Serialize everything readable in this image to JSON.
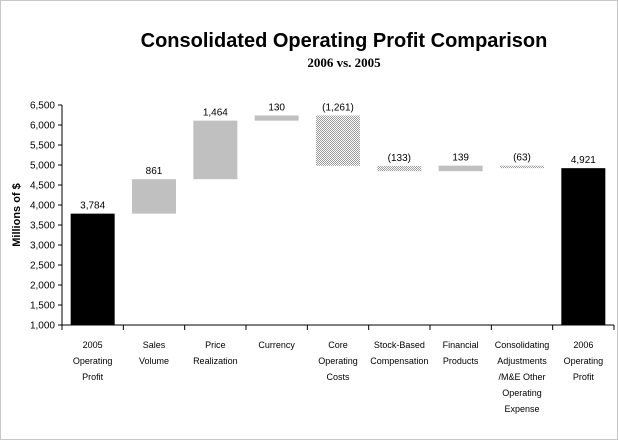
{
  "chart_data": {
    "type": "bar",
    "subtype": "waterfall",
    "title": "Consolidated Operating Profit Comparison",
    "subtitle": "2006 vs. 2005",
    "ylabel": "Millions of $",
    "xlabel": "",
    "ylim": [
      1000,
      6500
    ],
    "yticks": [
      "1,000",
      "1,500",
      "2,000",
      "2,500",
      "3,000",
      "3,500",
      "4,000",
      "4,500",
      "5,000",
      "5,500",
      "6,000",
      "6,500"
    ],
    "grid": false,
    "legend": "none",
    "categories": [
      [
        "2005",
        "Operating",
        "Profit"
      ],
      [
        "Sales",
        "Volume"
      ],
      [
        "Price",
        "Realization"
      ],
      [
        "Currency"
      ],
      [
        "Core",
        "Operating",
        "Costs"
      ],
      [
        "Stock-Based",
        "Compensation"
      ],
      [
        "Financial",
        "Products"
      ],
      [
        "Consolidating",
        "Adjustments",
        "/M&E Other",
        "Operating",
        "Expense"
      ],
      [
        "2006",
        "Operating",
        "Profit"
      ]
    ],
    "bars": [
      {
        "kind": "total",
        "start": 1000,
        "end": 3784,
        "label": "3,784"
      },
      {
        "kind": "increase",
        "start": 3784,
        "end": 4645,
        "label": "861"
      },
      {
        "kind": "increase",
        "start": 4645,
        "end": 6109,
        "label": "1,464"
      },
      {
        "kind": "increase",
        "start": 6109,
        "end": 6239,
        "label": "130"
      },
      {
        "kind": "decrease",
        "start": 6239,
        "end": 4978,
        "label": "(1,261)"
      },
      {
        "kind": "decrease",
        "start": 4978,
        "end": 4845,
        "label": "(133)"
      },
      {
        "kind": "increase",
        "start": 4845,
        "end": 4984,
        "label": "139"
      },
      {
        "kind": "decrease",
        "start": 4984,
        "end": 4921,
        "label": "(63)"
      },
      {
        "kind": "total",
        "start": 1000,
        "end": 4921,
        "label": "4,921"
      }
    ],
    "colors": {
      "total": "#000000",
      "increase": "#c0c0c0",
      "decrease": "#a0a0a0",
      "axis": "#000000"
    }
  }
}
